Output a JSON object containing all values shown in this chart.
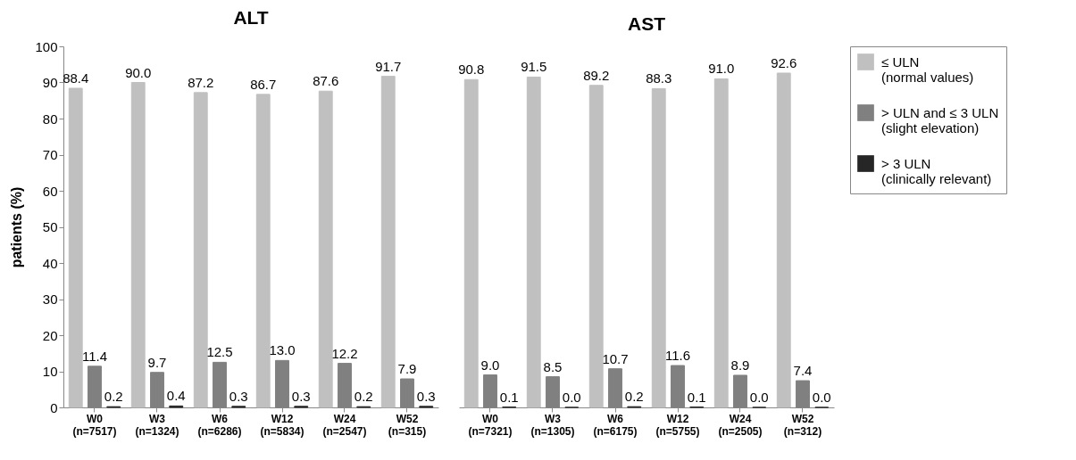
{
  "chart_data": [
    {
      "type": "bar",
      "title": "ALT",
      "ylabel": "patients (%)",
      "categories": [
        "W0\n(n=7517)",
        "W3\n(n=1324)",
        "W6\n(n=6286)",
        "W12\n(n=5834)",
        "W24\n(n=2547)",
        "W52\n(n=315)"
      ],
      "series": [
        {
          "name": "≤ ULN\n(normal values)",
          "color": "#c0c0c0",
          "values": [
            88.4,
            90.0,
            87.2,
            86.7,
            87.6,
            91.7
          ],
          "value_labels": [
            "88.4",
            "90.0",
            "87.2",
            "86.7",
            "87.6",
            "91.7"
          ]
        },
        {
          "name": "> ULN and ≤ 3 ULN\n(slight elevation)",
          "color": "#808080",
          "values": [
            11.4,
            9.7,
            12.5,
            13.0,
            12.2,
            7.9
          ],
          "value_labels": [
            "11.4",
            "9.7",
            "12.5",
            "13.0",
            "12.2",
            "7.9"
          ]
        },
        {
          "name": "> 3 ULN\n(clinically relevant)",
          "color": "#262626",
          "values": [
            0.2,
            0.4,
            0.3,
            0.3,
            0.2,
            0.3
          ],
          "value_labels": [
            "0.2",
            "0.4",
            "0.3",
            "0.3",
            "0.2",
            "0.3"
          ]
        }
      ],
      "ylim": [
        0,
        100
      ],
      "yticks": [
        0,
        10,
        20,
        30,
        40,
        50,
        60,
        70,
        80,
        90,
        100
      ],
      "grid": false,
      "legend": "right"
    },
    {
      "type": "bar",
      "title": "AST",
      "categories": [
        "W0\n(n=7321)",
        "W3\n(n=1305)",
        "W6\n(n=6175)",
        "W12\n(n=5755)",
        "W24\n(n=2505)",
        "W52\n(n=312)"
      ],
      "series": [
        {
          "name": "≤ ULN\n(normal values)",
          "color": "#c0c0c0",
          "values": [
            90.8,
            91.5,
            89.2,
            88.3,
            91.0,
            92.6
          ],
          "value_labels": [
            "90.8",
            "91.5",
            "89.2",
            "88.3",
            "91.0",
            "92.6"
          ]
        },
        {
          "name": "> ULN and ≤ 3 ULN\n(slight elevation)",
          "color": "#808080",
          "values": [
            9.0,
            8.5,
            10.7,
            11.6,
            8.9,
            7.4
          ],
          "value_labels": [
            "9.0",
            "8.5",
            "10.7",
            "11.6",
            "8.9",
            "7.4"
          ]
        },
        {
          "name": "> 3 ULN\n(clinically relevant)",
          "color": "#262626",
          "values": [
            0.1,
            0.0,
            0.2,
            0.1,
            0.0,
            0.0
          ],
          "value_labels": [
            "0.1",
            "0.0",
            "0.2",
            "0.1",
            "0.0",
            "0.0"
          ]
        }
      ],
      "ylim": [
        0,
        100
      ],
      "yticks": [
        0,
        10,
        20,
        30,
        40,
        50,
        60,
        70,
        80,
        90,
        100
      ],
      "tick_labels": "x",
      "grid": false,
      "legend": "right"
    }
  ]
}
